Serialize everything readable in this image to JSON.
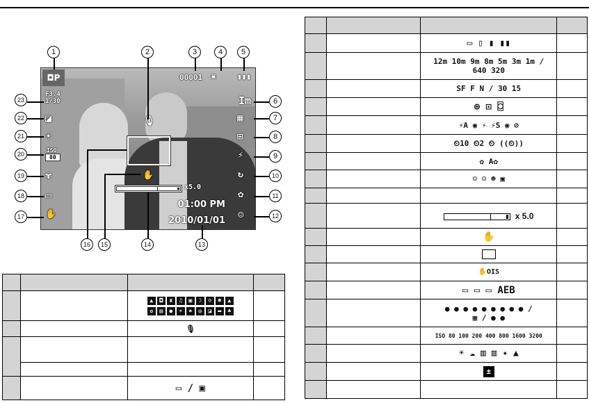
{
  "callouts": [
    "1",
    "2",
    "3",
    "4",
    "5",
    "6",
    "7",
    "8",
    "9",
    "10",
    "11",
    "12",
    "13",
    "14",
    "15",
    "16",
    "17",
    "18",
    "19",
    "20",
    "21",
    "22",
    "23"
  ],
  "screen": {
    "frame_counter": "00001",
    "memory_icon": "internal-memory-icon",
    "battery_icon": "battery-full-icon",
    "image_size": "Im",
    "aperture": "F3.4",
    "shutter": "1/30",
    "iso_label": "ISO",
    "iso_value": "80",
    "zoom_value": "x5.0",
    "time": "01:00 PM",
    "date": "2010/01/01",
    "mode_icon": "program-mode-icon"
  },
  "left_table": {
    "rows": [
      {
        "icons": [
          "scene-icons"
        ]
      },
      {
        "icons": [
          "microphone-icon"
        ]
      },
      {
        "icons": []
      },
      {
        "icons": []
      },
      {
        "icons": [
          "memory-card-icon",
          "internal-memory-icon"
        ],
        "text": "/"
      }
    ]
  },
  "right_table": {
    "rows": [
      {
        "text": "▭ ▯ ▮ ▮▮"
      },
      {
        "text": "12m 10m 9m 8m 5m 3m 1m /",
        "text2": "640 320"
      },
      {
        "text": "SF F N / 30 15"
      },
      {
        "text": "⊕  ⊡  ⌼"
      },
      {
        "text": "⚡A ◉ ⚡ ⚡S ◉ ⊘"
      },
      {
        "text": "⏲10 ⏲2 ⏲ ((⏲))"
      },
      {
        "text": "✿ A✿"
      },
      {
        "text": "☺ ☺ ☻ ▣"
      },
      {
        "text": ""
      },
      {
        "text": "x 5.0"
      },
      {
        "text": "✋"
      },
      {
        "text": ""
      },
      {
        "text": "✋OIS"
      },
      {
        "text": "▭ ▭ ▭ AEB"
      },
      {
        "text": "● ● ● ● ● ● ● ● ● /",
        "text2": "▦ / ● ●"
      },
      {
        "text": "ISO 80 100 200 400 800 1600 3200"
      },
      {
        "text": "☀ ☁ ▥ ▥ ✦ ▲"
      },
      {
        "text": "±"
      },
      {
        "text": ""
      }
    ]
  }
}
